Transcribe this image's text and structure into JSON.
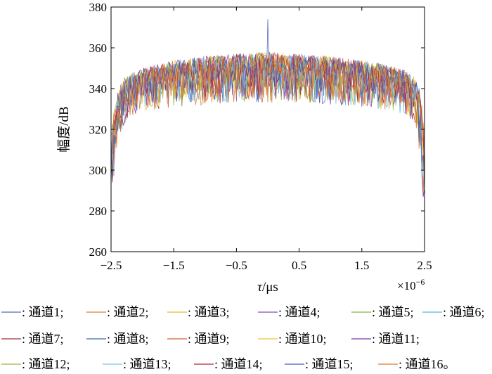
{
  "chart_data": {
    "type": "line",
    "title": "",
    "xlabel_symbol": "τ",
    "xlabel_unit": "/μs",
    "ylabel": "幅度/dB",
    "x_multiplier": "×10",
    "x_multiplier_exp": "−6",
    "xlim": [
      -2.5e-06,
      2.5e-06
    ],
    "ylim": [
      260,
      380
    ],
    "x_ticks": [
      -2.5,
      -1.5,
      -0.5,
      0.5,
      1.5,
      2.5
    ],
    "x_tick_labels": [
      "−2.5",
      "−1.5",
      "−0.5",
      "0.5",
      "1.5",
      "2.5"
    ],
    "y_ticks": [
      260,
      280,
      300,
      320,
      340,
      360,
      380
    ],
    "y_tick_labels": [
      "260",
      "280",
      "300",
      "320",
      "340",
      "360",
      "380"
    ],
    "grid": false,
    "legend_position": "bottom",
    "envelope": {
      "x": [
        -2.5,
        -2.45,
        -2.4,
        -2.35,
        -2.3,
        -2.2,
        -2.0,
        -1.5,
        -1.0,
        -0.5,
        0.0,
        0.5,
        1.0,
        1.5,
        2.0,
        2.2,
        2.3,
        2.35,
        2.4,
        2.45,
        2.5
      ],
      "upper": [
        318,
        330,
        338,
        342,
        345,
        347,
        350,
        354,
        356,
        357,
        358,
        357,
        356,
        354,
        351,
        349,
        347,
        345,
        342,
        335,
        318
      ],
      "lower": [
        288,
        298,
        310,
        318,
        322,
        326,
        329,
        331,
        332,
        333,
        333,
        333,
        332,
        331,
        329,
        327,
        324,
        320,
        312,
        300,
        270
      ]
    },
    "peak": {
      "x": 0.0,
      "y": 374
    },
    "series": [
      {
        "name": "通道1",
        "color": "#4a6fb5"
      },
      {
        "name": "通道2",
        "color": "#e07a3a"
      },
      {
        "name": "通道3",
        "color": "#e8b730"
      },
      {
        "name": "通道4",
        "color": "#8a4fa8"
      },
      {
        "name": "通道5",
        "color": "#8ab33a"
      },
      {
        "name": "通道6",
        "color": "#5ab4e0"
      },
      {
        "name": "通道7",
        "color": "#a8323a"
      },
      {
        "name": "通道8",
        "color": "#3a6ab0"
      },
      {
        "name": "通道9",
        "color": "#d8642a"
      },
      {
        "name": "通道10",
        "color": "#f0c040"
      },
      {
        "name": "通道11",
        "color": "#7a3a9a"
      },
      {
        "name": "通道12",
        "color": "#9ab83a"
      },
      {
        "name": "通道13",
        "color": "#7ac4e8"
      },
      {
        "name": "通道14",
        "color": "#b0283a"
      },
      {
        "name": "通道15",
        "color": "#4a5ab8"
      },
      {
        "name": "通道16",
        "color": "#e8782a"
      }
    ],
    "legend_rows": [
      [
        "1",
        "2",
        "3",
        "4",
        "5",
        "6"
      ],
      [
        "7",
        "8",
        "9",
        "10",
        "11"
      ],
      [
        "12",
        "13",
        "14",
        "15",
        "16"
      ]
    ],
    "legend_separator": ": ",
    "legend_suffix": ";",
    "legend_final_suffix": "。"
  }
}
